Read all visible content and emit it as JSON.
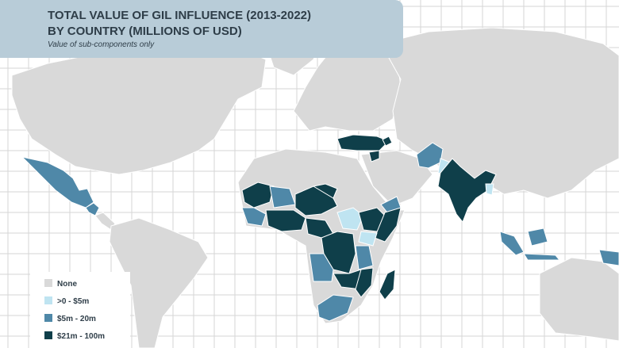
{
  "header": {
    "title_line1": "TOTAL VALUE OF GIL INFLUENCE (2013-2022)",
    "title_line2": "BY COUNTRY (MILLIONS OF USD)",
    "subtitle": "Value of sub-components only"
  },
  "legend": [
    {
      "label": "None",
      "color": "#d9d9d9"
    },
    {
      "label": ">0 - $5m",
      "color": "#bfe4f1"
    },
    {
      "label": "$5m - 20m",
      "color": "#4f88a8"
    },
    {
      "label": "$21m - 100m",
      "color": "#0f3f4a"
    }
  ]
}
